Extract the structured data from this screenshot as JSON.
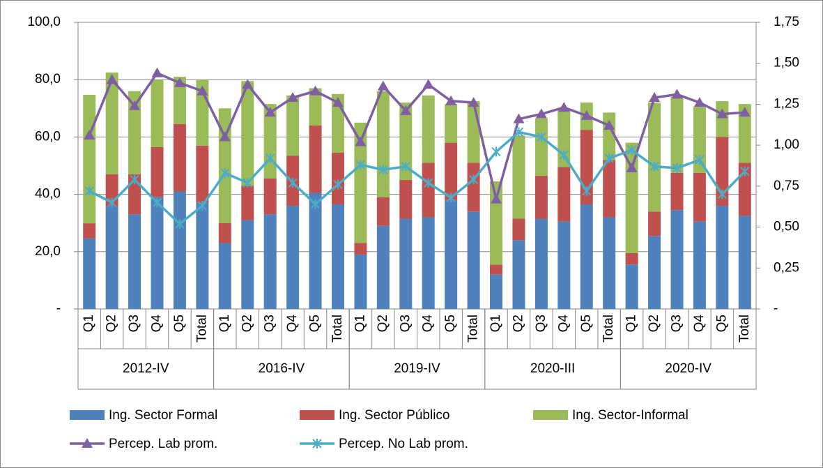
{
  "chart_data": {
    "type": "bar",
    "categories": [
      "Q1",
      "Q2",
      "Q3",
      "Q4",
      "Q5",
      "Total",
      "Q1",
      "Q2",
      "Q3",
      "Q4",
      "Q5",
      "Total",
      "Q1",
      "Q2",
      "Q3",
      "Q4",
      "Q5",
      "Total",
      "Q1",
      "Q2",
      "Q3",
      "Q4",
      "Q5",
      "Total",
      "Q1",
      "Q2",
      "Q3",
      "Q4",
      "Q5",
      "Total"
    ],
    "groups": [
      "2012-IV",
      "2016-IV",
      "2019-IV",
      "2020-III",
      "2020-IV"
    ],
    "ylim": [
      0,
      100
    ],
    "yticks": [
      {
        "value": 0,
        "label": "-"
      },
      {
        "value": 20,
        "label": "20,0"
      },
      {
        "value": 40,
        "label": "40,0"
      },
      {
        "value": 60,
        "label": "60,0"
      },
      {
        "value": 80,
        "label": "80,0"
      },
      {
        "value": 100,
        "label": "100,0"
      }
    ],
    "y2lim": [
      0,
      1.75
    ],
    "y2ticks": [
      {
        "value": 0,
        "label": "-"
      },
      {
        "value": 0.25,
        "label": "0,25"
      },
      {
        "value": 0.5,
        "label": "0,50"
      },
      {
        "value": 0.75,
        "label": "0,75"
      },
      {
        "value": 1,
        "label": "1,00"
      },
      {
        "value": 1.25,
        "label": "1,25"
      },
      {
        "value": 1.5,
        "label": "1,50"
      },
      {
        "value": 1.75,
        "label": "1,75"
      }
    ],
    "grid": true,
    "series": [
      {
        "name": "Ing. Sector Formal",
        "type": "bar",
        "color": "#4f81bd",
        "values": [
          24.6,
          36,
          33,
          39,
          41,
          37,
          23,
          31,
          33,
          36,
          40.5,
          36.5,
          19,
          29,
          31.5,
          32,
          38,
          34,
          12,
          24,
          31.5,
          30.5,
          36.5,
          32,
          15.5,
          25.5,
          34.5,
          30.5,
          36,
          32.5
        ]
      },
      {
        "name": "Ing. Sector Público",
        "type": "bar",
        "color": "#c0504d",
        "values": [
          5.3,
          11,
          14,
          17.5,
          23.5,
          20,
          7,
          12,
          12.5,
          17.5,
          23.5,
          18,
          4,
          10,
          13.5,
          19,
          20,
          17,
          3.5,
          7.5,
          15,
          19,
          26,
          20,
          4,
          8.5,
          13,
          17,
          24,
          18.5
        ]
      },
      {
        "name": "Ing. Sector-Informal",
        "type": "bar",
        "color": "#9bbb59",
        "values": [
          44.8,
          35.5,
          29,
          23.5,
          16.5,
          23,
          40,
          36.5,
          26,
          21,
          13,
          20.5,
          42,
          37,
          27,
          23.5,
          13.5,
          21.5,
          29,
          29,
          20,
          20.5,
          9.5,
          16.5,
          38.5,
          38,
          26.5,
          23,
          12.5,
          20.5
        ]
      },
      {
        "name": "Percep. Lab prom.",
        "type": "line",
        "axis": "y2",
        "marker": "triangle",
        "color": "#7e5fa1",
        "values": [
          1.06,
          1.4,
          1.24,
          1.44,
          1.38,
          1.33,
          1.05,
          1.37,
          1.2,
          1.29,
          1.33,
          1.26,
          1.02,
          1.36,
          1.21,
          1.37,
          1.27,
          1.26,
          0.67,
          1.16,
          1.19,
          1.23,
          1.18,
          1.12,
          0.86,
          1.29,
          1.31,
          1.26,
          1.19,
          1.2
        ]
      },
      {
        "name": "Percep. No Lab prom.",
        "type": "line",
        "axis": "y2",
        "marker": "asterisk",
        "color": "#4bacc6",
        "values": [
          0.72,
          0.65,
          0.79,
          0.65,
          0.52,
          0.63,
          0.83,
          0.77,
          0.92,
          0.77,
          0.64,
          0.76,
          0.88,
          0.85,
          0.87,
          0.77,
          0.68,
          0.79,
          0.96,
          1.08,
          1.05,
          0.94,
          0.72,
          0.92,
          0.97,
          0.87,
          0.86,
          0.91,
          0.7,
          0.84
        ]
      }
    ]
  }
}
